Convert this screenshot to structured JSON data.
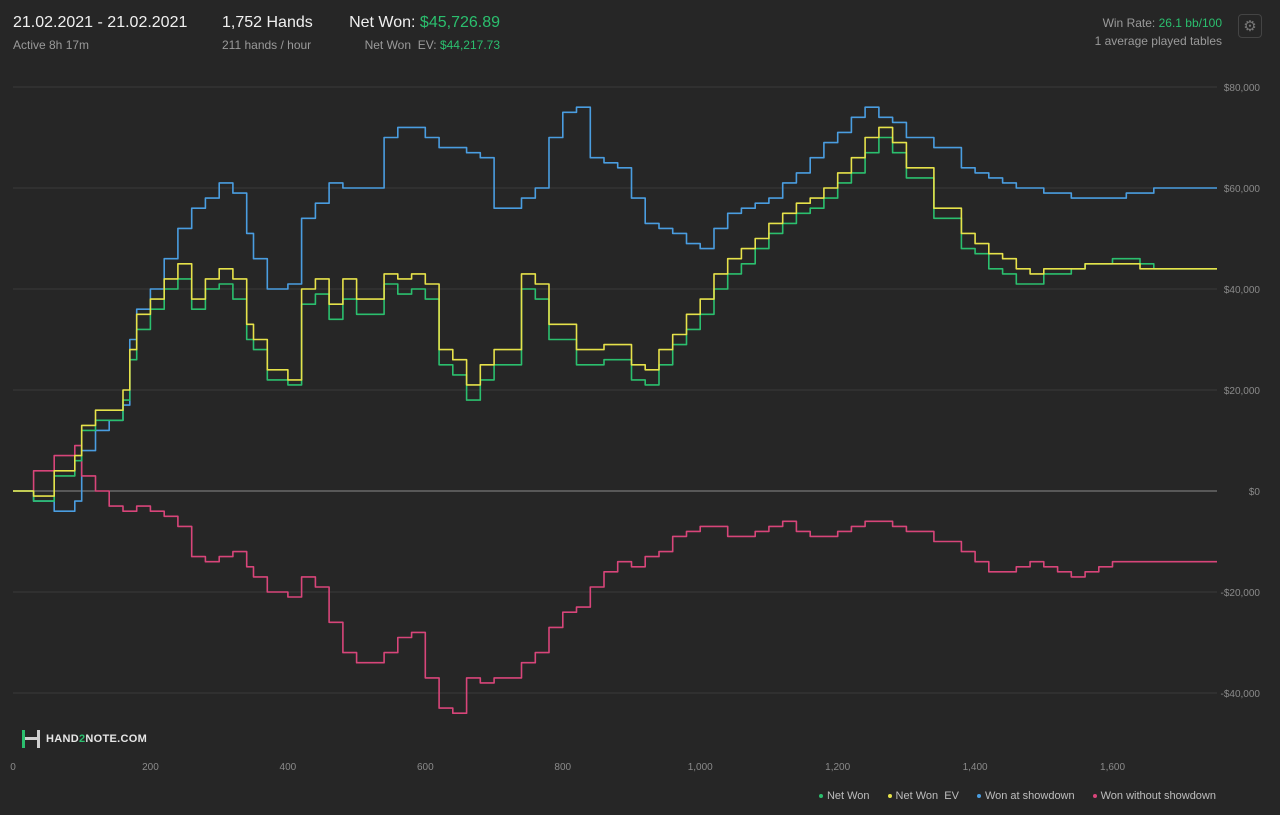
{
  "header": {
    "date_range": "21.02.2021 - 21.02.2021",
    "active": "Active 8h 17m",
    "hands": "1,752 Hands",
    "hands_per_hour": "211 hands / hour",
    "net_won_label": "Net Won:",
    "net_won_value": "$45,726.89",
    "net_won_ev_label": "Net Won  EV:",
    "net_won_ev_value": "$44,217.73",
    "win_rate_label": "Win Rate:",
    "win_rate_value": "26.1 bb/100",
    "tables": "1 average played tables",
    "settings_icon": "gear-icon"
  },
  "logo": {
    "text_a": "HAND",
    "text_b": "2",
    "text_c": "NOTE.COM"
  },
  "chart_data": {
    "type": "line",
    "xlim": [
      0,
      1752
    ],
    "ylim": [
      -46000,
      82000
    ],
    "x_ticks": [
      0,
      200,
      400,
      600,
      800,
      1000,
      1200,
      1400,
      1600
    ],
    "x_tick_labels": [
      "0",
      "200",
      "400",
      "600",
      "800",
      "1,000",
      "1,200",
      "1,400",
      "1,600"
    ],
    "y_ticks": [
      80000,
      60000,
      40000,
      20000,
      0,
      -20000,
      -40000
    ],
    "y_tick_labels": [
      "$80,000",
      "$60,000",
      "$40,000",
      "$20,000",
      "$0",
      "-$20,000",
      "-$40,000"
    ],
    "grid": true,
    "legend_position": "bottom-right",
    "series": [
      {
        "name": "Net Won",
        "color": "#2bbf6e",
        "x": [
          0,
          30,
          60,
          90,
          100,
          120,
          140,
          160,
          170,
          180,
          200,
          220,
          240,
          260,
          280,
          300,
          320,
          340,
          350,
          370,
          400,
          420,
          440,
          460,
          480,
          500,
          540,
          560,
          580,
          600,
          620,
          640,
          660,
          680,
          700,
          740,
          760,
          780,
          800,
          820,
          840,
          860,
          880,
          900,
          920,
          940,
          960,
          980,
          1000,
          1020,
          1040,
          1060,
          1080,
          1100,
          1120,
          1140,
          1160,
          1180,
          1200,
          1220,
          1240,
          1260,
          1280,
          1300,
          1340,
          1380,
          1400,
          1420,
          1440,
          1460,
          1480,
          1500,
          1520,
          1540,
          1560,
          1580,
          1600,
          1620,
          1640,
          1660,
          1680,
          1700,
          1720,
          1740,
          1752
        ],
        "y": [
          0,
          -2000,
          3000,
          6000,
          12000,
          14000,
          14000,
          18000,
          26000,
          32000,
          36000,
          40000,
          42000,
          36000,
          40000,
          41000,
          38000,
          30000,
          28000,
          22000,
          21000,
          37000,
          39000,
          34000,
          38000,
          35000,
          41000,
          39000,
          40000,
          38000,
          25000,
          23000,
          18000,
          22000,
          25000,
          40000,
          38000,
          30000,
          30000,
          25000,
          25000,
          26000,
          26000,
          22000,
          21000,
          25000,
          29000,
          32000,
          35000,
          40000,
          43000,
          45000,
          48000,
          51000,
          53000,
          55000,
          56000,
          58000,
          61000,
          63000,
          67000,
          70000,
          67000,
          62000,
          54000,
          48000,
          47000,
          44000,
          43000,
          41000,
          41000,
          43000,
          43000,
          44000,
          45000,
          45000,
          46000,
          46000,
          45000,
          44000,
          44000,
          44000,
          44000,
          44000,
          44000
        ]
      },
      {
        "name": "Net Won  EV",
        "color": "#e6e24a",
        "x": [
          0,
          30,
          60,
          90,
          100,
          120,
          140,
          160,
          170,
          180,
          200,
          220,
          240,
          260,
          280,
          300,
          320,
          340,
          350,
          370,
          400,
          420,
          440,
          460,
          480,
          500,
          540,
          560,
          580,
          600,
          620,
          640,
          660,
          680,
          700,
          740,
          760,
          780,
          800,
          820,
          840,
          860,
          880,
          900,
          920,
          940,
          960,
          980,
          1000,
          1020,
          1040,
          1060,
          1080,
          1100,
          1120,
          1140,
          1160,
          1180,
          1200,
          1220,
          1240,
          1260,
          1280,
          1300,
          1340,
          1380,
          1400,
          1420,
          1440,
          1460,
          1480,
          1500,
          1520,
          1540,
          1560,
          1580,
          1600,
          1620,
          1640,
          1660,
          1680,
          1700,
          1720,
          1740,
          1752
        ],
        "y": [
          0,
          -1000,
          4000,
          7000,
          13000,
          16000,
          16000,
          20000,
          28000,
          35000,
          38000,
          42000,
          45000,
          38000,
          42000,
          44000,
          42000,
          33000,
          30000,
          24000,
          22000,
          40000,
          42000,
          37000,
          42000,
          38000,
          43000,
          42000,
          43000,
          41000,
          28000,
          26000,
          21000,
          25000,
          28000,
          43000,
          41000,
          33000,
          33000,
          28000,
          28000,
          29000,
          29000,
          25000,
          24000,
          28000,
          31000,
          35000,
          38000,
          43000,
          46000,
          48000,
          50000,
          53000,
          55000,
          57000,
          58000,
          60000,
          63000,
          66000,
          70000,
          72000,
          69000,
          64000,
          56000,
          51000,
          49000,
          47000,
          46000,
          44000,
          43000,
          44000,
          44000,
          44000,
          45000,
          45000,
          45000,
          45000,
          44000,
          44000,
          44000,
          44000,
          44000,
          44000,
          44000
        ]
      },
      {
        "name": "Won at showdown",
        "color": "#4a9de0",
        "x": [
          0,
          30,
          60,
          90,
          100,
          120,
          140,
          160,
          170,
          180,
          200,
          220,
          240,
          260,
          280,
          300,
          320,
          340,
          350,
          370,
          400,
          420,
          440,
          460,
          480,
          500,
          540,
          560,
          580,
          600,
          620,
          640,
          660,
          680,
          700,
          740,
          760,
          780,
          800,
          820,
          840,
          860,
          880,
          900,
          920,
          940,
          960,
          980,
          1000,
          1020,
          1040,
          1060,
          1080,
          1100,
          1120,
          1140,
          1160,
          1180,
          1200,
          1220,
          1240,
          1260,
          1280,
          1300,
          1340,
          1380,
          1400,
          1420,
          1440,
          1460,
          1480,
          1500,
          1520,
          1540,
          1560,
          1580,
          1600,
          1620,
          1640,
          1660,
          1680,
          1700,
          1720,
          1740,
          1752
        ],
        "y": [
          0,
          -2000,
          -4000,
          -2000,
          8000,
          12000,
          14000,
          17000,
          30000,
          36000,
          40000,
          46000,
          52000,
          56000,
          58000,
          61000,
          59000,
          51000,
          46000,
          40000,
          41000,
          54000,
          57000,
          61000,
          60000,
          60000,
          70000,
          72000,
          72000,
          70000,
          68000,
          68000,
          67000,
          66000,
          56000,
          58000,
          60000,
          70000,
          75000,
          76000,
          66000,
          65000,
          64000,
          58000,
          53000,
          52000,
          51000,
          49000,
          48000,
          52000,
          55000,
          56000,
          57000,
          58000,
          61000,
          63000,
          66000,
          69000,
          71000,
          74000,
          76000,
          74000,
          73000,
          70000,
          68000,
          64000,
          63000,
          62000,
          61000,
          60000,
          60000,
          59000,
          59000,
          58000,
          58000,
          58000,
          58000,
          59000,
          59000,
          60000,
          60000,
          60000,
          60000,
          60000,
          60000
        ]
      },
      {
        "name": "Won without showdown",
        "color": "#d8457a",
        "x": [
          0,
          30,
          60,
          90,
          100,
          120,
          140,
          160,
          170,
          180,
          200,
          220,
          240,
          260,
          280,
          300,
          320,
          340,
          350,
          370,
          400,
          420,
          440,
          460,
          480,
          500,
          540,
          560,
          580,
          600,
          620,
          640,
          660,
          680,
          700,
          740,
          760,
          780,
          800,
          820,
          840,
          860,
          880,
          900,
          920,
          940,
          960,
          980,
          1000,
          1020,
          1040,
          1060,
          1080,
          1100,
          1120,
          1140,
          1160,
          1180,
          1200,
          1220,
          1240,
          1260,
          1280,
          1300,
          1340,
          1380,
          1400,
          1420,
          1440,
          1460,
          1480,
          1500,
          1520,
          1540,
          1560,
          1580,
          1600,
          1620,
          1640,
          1660,
          1680,
          1700,
          1720,
          1740,
          1752
        ],
        "y": [
          0,
          4000,
          7000,
          9000,
          3000,
          0,
          -3000,
          -4000,
          -4000,
          -3000,
          -4000,
          -5000,
          -7000,
          -13000,
          -14000,
          -13000,
          -12000,
          -15000,
          -17000,
          -20000,
          -21000,
          -17000,
          -19000,
          -26000,
          -32000,
          -34000,
          -32000,
          -29000,
          -28000,
          -37000,
          -43000,
          -44000,
          -37000,
          -38000,
          -37000,
          -34000,
          -32000,
          -27000,
          -24000,
          -23000,
          -19000,
          -16000,
          -14000,
          -15000,
          -13000,
          -12000,
          -9000,
          -8000,
          -7000,
          -7000,
          -9000,
          -9000,
          -8000,
          -7000,
          -6000,
          -8000,
          -9000,
          -9000,
          -8000,
          -7000,
          -6000,
          -6000,
          -7000,
          -8000,
          -10000,
          -12000,
          -14000,
          -16000,
          -16000,
          -15000,
          -14000,
          -15000,
          -16000,
          -17000,
          -16000,
          -15000,
          -14000,
          -14000,
          -14000,
          -14000,
          -14000,
          -14000,
          -14000,
          -14000,
          -14000
        ]
      }
    ]
  }
}
